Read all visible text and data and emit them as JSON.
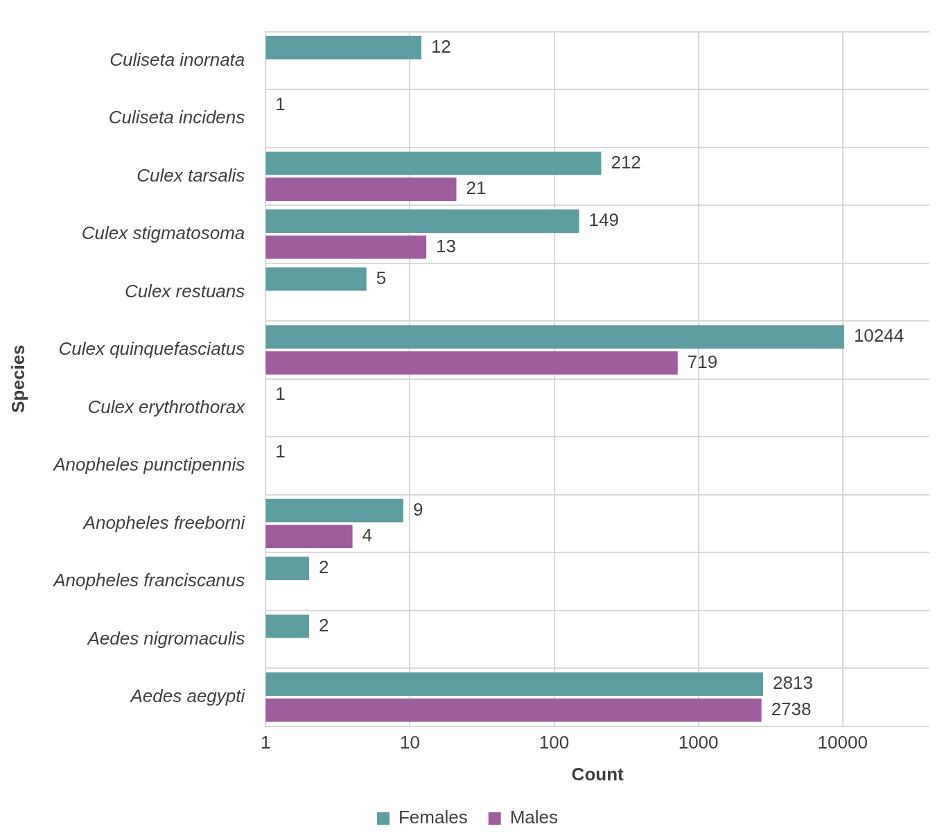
{
  "chart_data": {
    "type": "bar",
    "orientation": "horizontal",
    "log": "x",
    "xlabel": "Count",
    "ylabel": "Species",
    "categories": [
      "Culiseta inornata",
      "Culiseta incidens",
      "Culex tarsalis",
      "Culex stigmatosoma",
      "Culex restuans",
      "Culex quinquefasciatus",
      "Culex erythrothorax",
      "Anopheles punctipennis",
      "Anopheles freeborni",
      "Anopheles franciscanus",
      "Aedes nigromaculis",
      "Aedes aegypti"
    ],
    "series": [
      {
        "name": "Females",
        "color": "#5f9ea0",
        "values": [
          12,
          1,
          212,
          149,
          5,
          10244,
          1,
          1,
          9,
          2,
          2,
          2813
        ]
      },
      {
        "name": "Males",
        "color": "#9e5e9e",
        "values": [
          null,
          null,
          21,
          13,
          null,
          719,
          null,
          null,
          4,
          null,
          null,
          2738
        ]
      }
    ],
    "xlim": [
      1,
      40000
    ],
    "xticks": [
      1,
      10,
      100,
      1000,
      10000
    ],
    "grid": true,
    "legend": "bottom",
    "data_labels": true
  }
}
